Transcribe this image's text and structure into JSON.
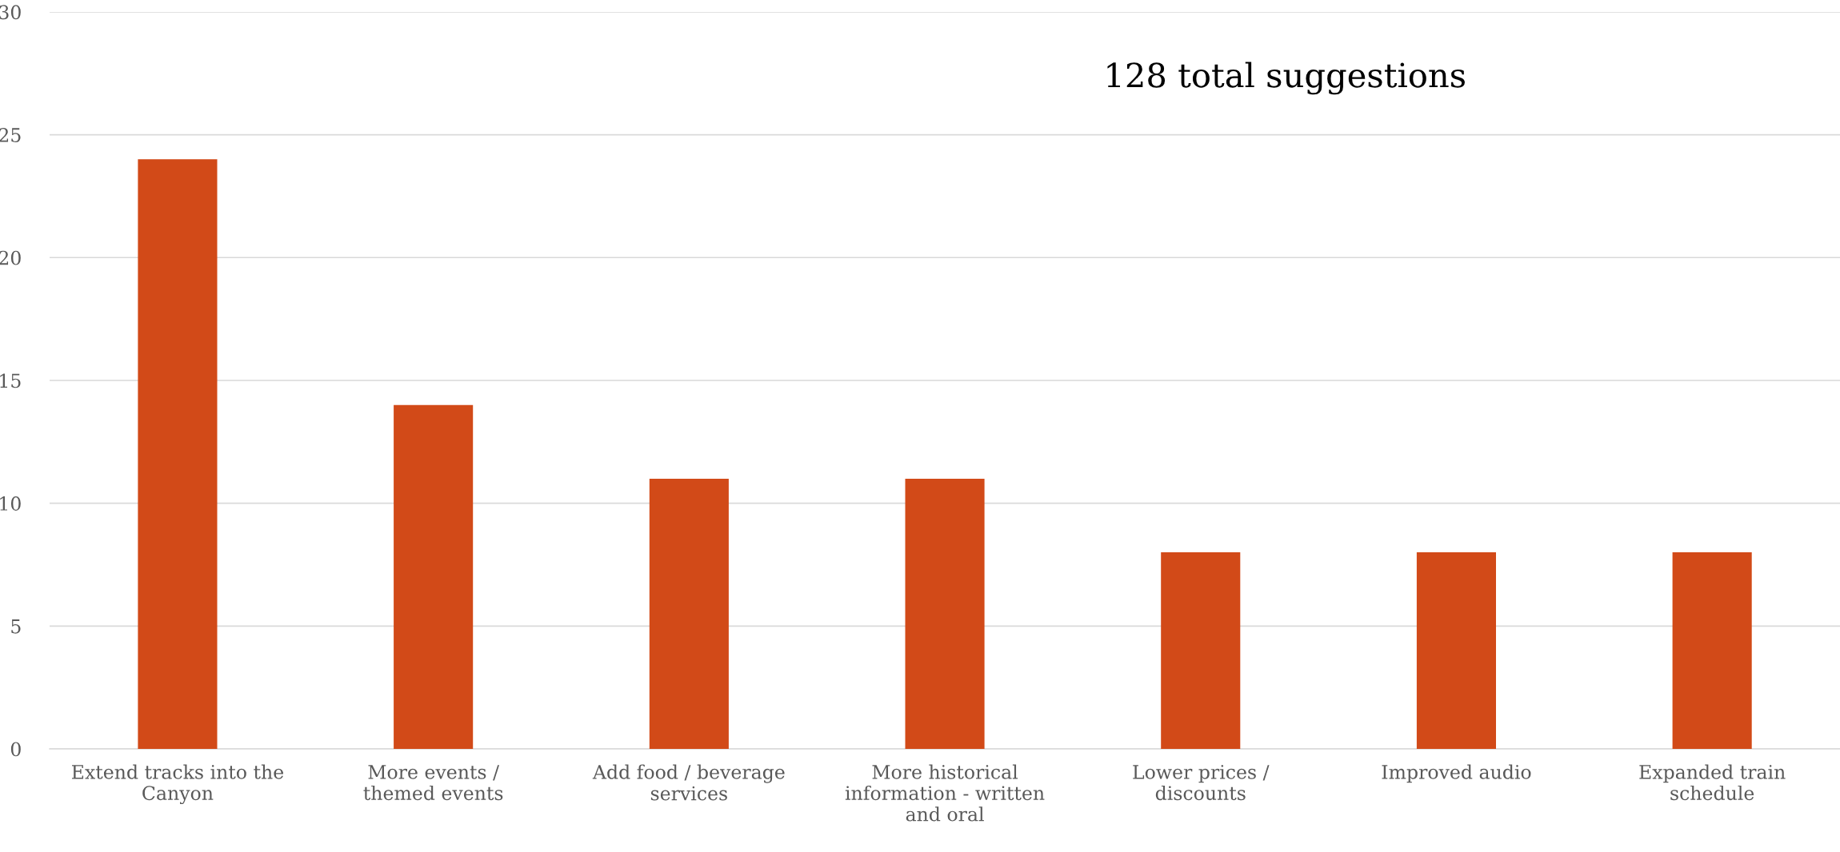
{
  "chart_data": {
    "type": "bar",
    "categories": [
      "Extend tracks into the\nCanyon",
      "More events /\nthemed events",
      "Add food / beverage\nservices",
      "More historical\ninformation - written\nand oral",
      "Lower prices /\ndiscounts",
      "Improved audio",
      "Expanded train\nschedule"
    ],
    "values": [
      24,
      14,
      11,
      11,
      8,
      8,
      8
    ],
    "color": "#d24a18",
    "ylim": [
      0,
      30
    ],
    "yticks": [
      0,
      5,
      10,
      15,
      20,
      25,
      30
    ],
    "grid": "y",
    "annotations": [
      "128 total suggestions"
    ]
  }
}
